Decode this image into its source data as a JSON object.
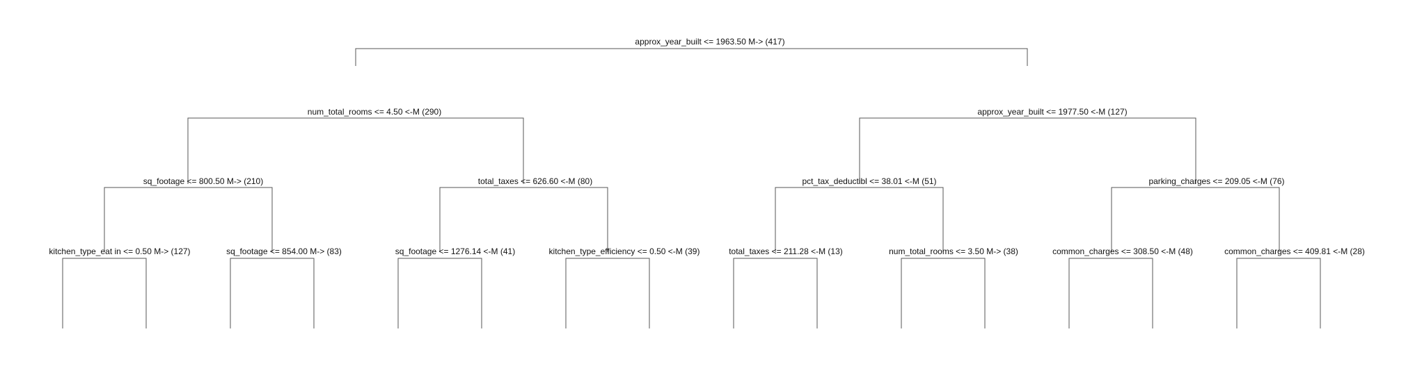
{
  "tree": {
    "root": {
      "label": "approx_year_built <= 1963.50 M-> (417)",
      "left": {
        "label": "num_total_rooms <= 4.50 <-M (290)",
        "left": {
          "label": "sq_footage <= 800.50 M-> (210)",
          "left": {
            "label": "kitchen_type_eat in <= 0.50 M-> (127)"
          },
          "right": {
            "label": "sq_footage <= 854.00 M-> (83)"
          }
        },
        "right": {
          "label": "total_taxes <= 626.60 <-M (80)",
          "left": {
            "label": "sq_footage <= 1276.14 <-M (41)"
          },
          "right": {
            "label": "kitchen_type_efficiency <= 0.50 <-M (39)"
          }
        }
      },
      "right": {
        "label": "approx_year_built <= 1977.50 <-M (127)",
        "left": {
          "label": "pct_tax_deductibl <= 38.01 <-M (51)",
          "left": {
            "label": "total_taxes <= 211.28 <-M (13)"
          },
          "right": {
            "label": "num_total_rooms <= 3.50 M-> (38)"
          }
        },
        "right": {
          "label": "parking_charges <= 209.05 <-M (76)",
          "left": {
            "label": "common_charges <= 308.50 <-M (48)"
          },
          "right": {
            "label": "common_charges <= 409.81 <-M (28)"
          }
        }
      }
    }
  }
}
